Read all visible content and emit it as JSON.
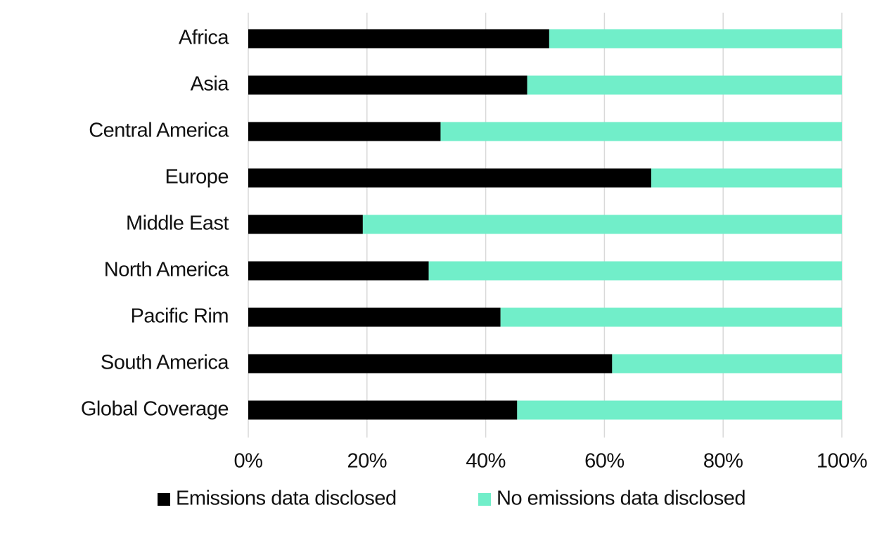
{
  "chart_data": {
    "type": "bar",
    "orientation": "horizontal",
    "stacked": true,
    "title": "",
    "xlabel": "",
    "ylabel": "",
    "xlim": [
      0,
      100
    ],
    "x_ticks": [
      "0%",
      "20%",
      "40%",
      "60%",
      "80%",
      "100%"
    ],
    "x_tick_values": [
      0,
      20,
      40,
      60,
      80,
      100
    ],
    "grid": "vertical",
    "legend_position": "bottom",
    "categories": [
      "Africa",
      "Asia",
      "Central America",
      "Europe",
      "Middle East",
      "North America",
      "Pacific Rim",
      "South America",
      "Global Coverage"
    ],
    "series": [
      {
        "name": "Emissions data disclosed",
        "color": "#000000",
        "values": [
          50.7,
          47.0,
          32.4,
          67.9,
          19.3,
          30.4,
          42.5,
          61.3,
          45.3
        ]
      },
      {
        "name": "No emissions data disclosed",
        "color": "#71eec9",
        "values": [
          49.3,
          53.0,
          67.6,
          32.1,
          80.7,
          69.6,
          57.5,
          38.7,
          54.7
        ]
      }
    ]
  }
}
